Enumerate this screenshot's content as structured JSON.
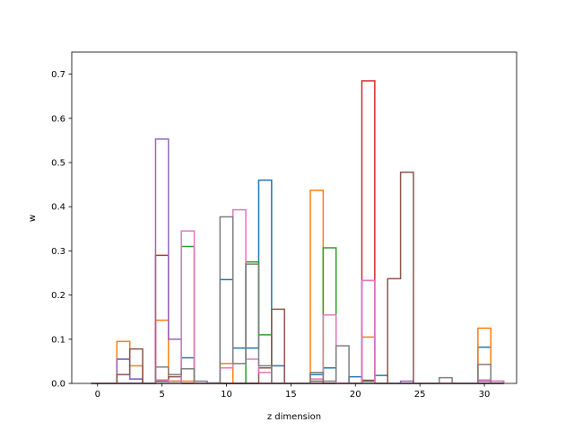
{
  "chart_data": {
    "type": "histogram",
    "style": "step outlines (one per series, overlapping)",
    "xlabel": "z dimension",
    "ylabel": "w",
    "xlim": [
      -2,
      32.5
    ],
    "ylim": [
      0,
      0.75
    ],
    "xticks": [
      0,
      5,
      10,
      15,
      20,
      25,
      30
    ],
    "yticks": [
      0.0,
      0.1,
      0.2,
      0.3,
      0.4,
      0.5,
      0.6,
      0.7
    ],
    "grid": false,
    "legend": "none",
    "bins": {
      "start": -0.5,
      "width": 1,
      "count": 32
    },
    "series": [
      {
        "color": "#1f77b4",
        "values": [
          0,
          0,
          0.055,
          0.01,
          0,
          0.005,
          0.005,
          0.058,
          0,
          0,
          0.235,
          0.08,
          0.08,
          0.46,
          0.04,
          0,
          0,
          0.02,
          0.035,
          0,
          0.015,
          0.005,
          0.018,
          0,
          0,
          0,
          0,
          0,
          0,
          0,
          0.082,
          0
        ]
      },
      {
        "color": "#ff7f0e",
        "values": [
          0,
          0,
          0.095,
          0.04,
          0,
          0.143,
          0.005,
          0.005,
          0,
          0,
          0.045,
          0,
          0,
          0,
          0,
          0,
          0,
          0.437,
          0,
          0,
          0,
          0.105,
          0,
          0,
          0,
          0,
          0,
          0,
          0,
          0,
          0.125,
          0
        ]
      },
      {
        "color": "#2ca02c",
        "values": [
          0,
          0,
          0,
          0,
          0,
          0,
          0,
          0.31,
          0,
          0,
          0,
          0,
          0.275,
          0.11,
          0,
          0,
          0,
          0,
          0.307,
          0,
          0,
          0,
          0,
          0,
          0,
          0,
          0,
          0,
          0,
          0,
          0,
          0
        ]
      },
      {
        "color": "#d62728",
        "values": [
          0,
          0,
          0,
          0,
          0,
          0.29,
          0.1,
          0,
          0,
          0,
          0,
          0,
          0,
          0,
          0,
          0,
          0,
          0,
          0,
          0,
          0,
          0.685,
          0,
          0,
          0,
          0,
          0,
          0,
          0,
          0,
          0,
          0
        ]
      },
      {
        "color": "#9467bd",
        "values": [
          0,
          0,
          0.055,
          0.01,
          0,
          0.553,
          0.1,
          0,
          0,
          0,
          0,
          0,
          0,
          0,
          0,
          0,
          0,
          0,
          0,
          0,
          0,
          0.233,
          0,
          0,
          0.005,
          0,
          0,
          0,
          0,
          0,
          0.005,
          0
        ]
      },
      {
        "color": "#8c564b",
        "values": [
          0,
          0,
          0.02,
          0.078,
          0,
          0.005,
          0.015,
          0,
          0,
          0,
          0,
          0,
          0,
          0.035,
          0.168,
          0,
          0,
          0.005,
          0,
          0,
          0,
          0.007,
          0,
          0.237,
          0.478,
          0,
          0,
          0,
          0,
          0,
          0,
          0.005
        ]
      },
      {
        "color": "#e377c2",
        "values": [
          0,
          0,
          0,
          0,
          0,
          0.008,
          0,
          0.345,
          0,
          0,
          0.035,
          0.393,
          0.055,
          0.025,
          0,
          0,
          0,
          0.01,
          0.155,
          0,
          0,
          0.233,
          0,
          0,
          0,
          0,
          0,
          0,
          0,
          0,
          0.008,
          0.005
        ]
      },
      {
        "color": "#7f7f7f",
        "values": [
          0,
          0,
          0,
          0,
          0,
          0.037,
          0.02,
          0.033,
          0.005,
          0.001,
          0.377,
          0.045,
          0.27,
          0.04,
          0,
          0,
          0,
          0.025,
          0.005,
          0.085,
          0,
          0,
          0,
          0,
          0,
          0,
          0,
          0.013,
          0,
          0,
          0.043,
          0
        ]
      }
    ]
  }
}
